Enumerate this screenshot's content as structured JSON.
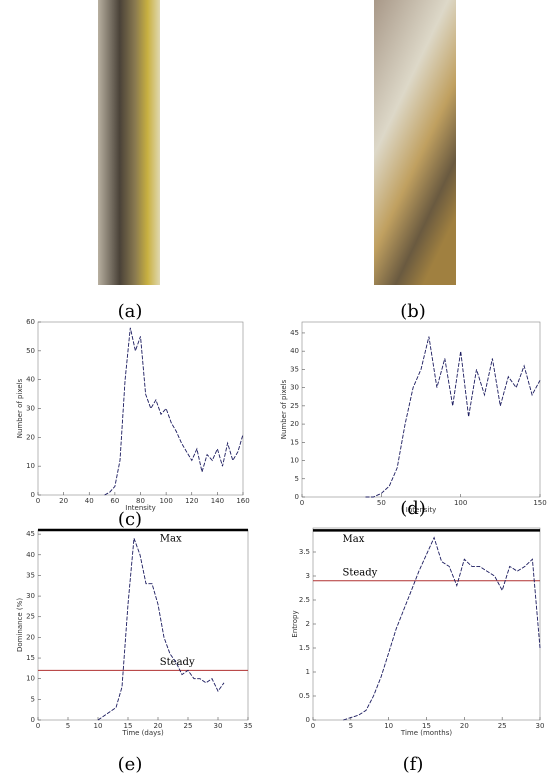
{
  "images": [
    {
      "caption": "(a)"
    },
    {
      "caption": "(b)"
    }
  ],
  "chart_data": [
    {
      "type": "line",
      "caption": "(c)",
      "x_label": "Intensity",
      "y_label": "Number of pixels",
      "xlim": [
        0,
        160
      ],
      "xticks": [
        0,
        20,
        40,
        60,
        80,
        100,
        120,
        140,
        160
      ],
      "ylim": [
        0,
        60
      ],
      "yticks": [
        0,
        10,
        20,
        30,
        40,
        50,
        60
      ],
      "series": [
        {
          "color": "#1a1a5e",
          "x": [
            52,
            56,
            60,
            64,
            68,
            72,
            76,
            80,
            84,
            88,
            92,
            96,
            100,
            104,
            108,
            112,
            116,
            120,
            124,
            128,
            132,
            136,
            140,
            144,
            148,
            152,
            156,
            160
          ],
          "values": [
            0,
            1,
            3,
            12,
            40,
            58,
            50,
            55,
            35,
            30,
            33,
            28,
            30,
            25,
            22,
            18,
            15,
            12,
            16,
            8,
            14,
            12,
            16,
            10,
            18,
            12,
            15,
            21
          ]
        }
      ]
    },
    {
      "type": "line",
      "caption": "(d)",
      "x_label": "Intensity",
      "y_label": "Number of pixels",
      "xlim": [
        0,
        150
      ],
      "xticks": [
        0,
        50,
        100,
        150
      ],
      "ylim": [
        0,
        48
      ],
      "yticks": [
        0,
        5,
        10,
        15,
        20,
        25,
        30,
        35,
        40,
        45
      ],
      "series": [
        {
          "color": "#1a1a5e",
          "x": [
            40,
            45,
            50,
            55,
            60,
            65,
            70,
            75,
            80,
            85,
            90,
            95,
            100,
            105,
            110,
            115,
            120,
            125,
            130,
            135,
            140,
            145,
            150
          ],
          "values": [
            0,
            0,
            1,
            3,
            8,
            20,
            30,
            35,
            44,
            30,
            38,
            25,
            40,
            22,
            35,
            28,
            38,
            25,
            33,
            30,
            36,
            28,
            32
          ]
        }
      ]
    },
    {
      "type": "line",
      "caption": "(e)",
      "x_label": "Time (days)",
      "y_label": "Dominance (%)",
      "xlim": [
        0,
        35
      ],
      "xticks": [
        0,
        5,
        10,
        15,
        20,
        25,
        30,
        35
      ],
      "ylim": [
        0,
        46
      ],
      "yticks": [
        0,
        5,
        10,
        15,
        20,
        25,
        30,
        35,
        40,
        45
      ],
      "hlines": [
        {
          "label": "Max",
          "value": 46,
          "color": "#000000"
        },
        {
          "label": "Steady",
          "value": 12,
          "color": "#b03030"
        }
      ],
      "series": [
        {
          "color": "#1a1a5e",
          "x": [
            10,
            11,
            12,
            13,
            14,
            15,
            16,
            17,
            18,
            19,
            20,
            21,
            22,
            23,
            24,
            25,
            26,
            27,
            28,
            29,
            30,
            31
          ],
          "values": [
            0,
            1,
            2,
            3,
            8,
            28,
            44,
            40,
            33,
            33,
            28,
            20,
            16,
            14,
            11,
            12,
            10,
            10,
            9,
            10,
            7,
            9
          ]
        }
      ]
    },
    {
      "type": "line",
      "caption": "(f)",
      "x_label": "Time (months)",
      "y_label": "Entropy",
      "xlim": [
        0,
        30
      ],
      "xticks": [
        0,
        5,
        10,
        15,
        20,
        25,
        30
      ],
      "ylim": [
        0,
        4
      ],
      "yticks": [
        0,
        0.5,
        1,
        1.5,
        2,
        2.5,
        3,
        3.5
      ],
      "hlines": [
        {
          "label": "Max",
          "value": 3.95,
          "color": "#000000"
        },
        {
          "label": "Steady",
          "value": 2.9,
          "color": "#b03030"
        }
      ],
      "series": [
        {
          "color": "#1a1a5e",
          "x": [
            4,
            5,
            6,
            7,
            8,
            9,
            10,
            11,
            12,
            13,
            14,
            15,
            16,
            17,
            18,
            19,
            20,
            21,
            22,
            23,
            24,
            25,
            26,
            27,
            28,
            29,
            30
          ],
          "values": [
            0,
            0.05,
            0.1,
            0.2,
            0.5,
            0.9,
            1.4,
            1.9,
            2.3,
            2.7,
            3.1,
            3.45,
            3.8,
            3.3,
            3.2,
            2.8,
            3.35,
            3.2,
            3.2,
            3.1,
            3.0,
            2.7,
            3.2,
            3.1,
            3.2,
            3.35,
            1.5
          ]
        }
      ]
    }
  ]
}
